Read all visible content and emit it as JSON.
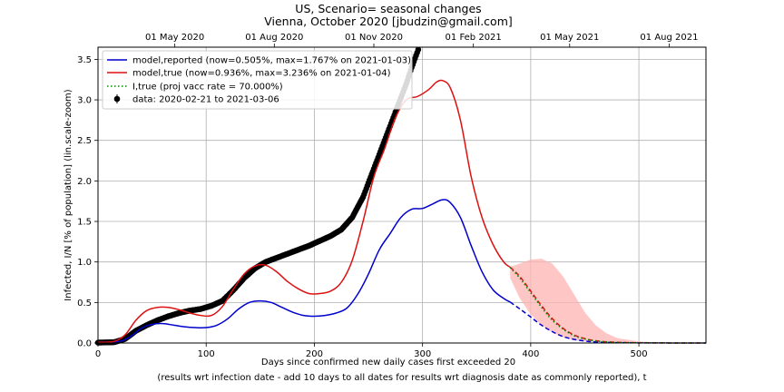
{
  "chart_data": {
    "type": "line",
    "title": [
      "US, Scenario= seasonal changes",
      "Vienna, October 2020 [jbudzin@gmail.com]"
    ],
    "xlabel": [
      "Days since confirmed new daily cases first exceeded 20",
      "(results wrt infection date - add 10 days to all dates for results wrt diagnosis date as commonly reported), t"
    ],
    "ylabel": "Infected, I/N [% of population] (lin.scale-zoom)",
    "xlim": [
      0,
      562
    ],
    "ylim": [
      0,
      3.65
    ],
    "x_ticks": [
      0,
      100,
      200,
      300,
      400,
      500
    ],
    "y_ticks": [
      0.0,
      0.5,
      1.0,
      1.5,
      2.0,
      2.5,
      3.0,
      3.5
    ],
    "top_axis_ticks": [
      {
        "t": 71,
        "label": "01 May 2020"
      },
      {
        "t": 163,
        "label": "01 Aug 2020"
      },
      {
        "t": 255,
        "label": "01 Nov 2020"
      },
      {
        "t": 347,
        "label": "01 Feb 2021"
      },
      {
        "t": 436,
        "label": "01 May 2021"
      },
      {
        "t": 528,
        "label": "01 Aug 2021"
      }
    ],
    "grid": true,
    "legend_position": "top-left",
    "series": [
      {
        "name": "model,reported (now=0.505%, max=1.767% on 2021-01-03)",
        "color": "#0000cc",
        "style": "solid",
        "points": [
          [
            0,
            0.01
          ],
          [
            20,
            0.02
          ],
          [
            30,
            0.08
          ],
          [
            40,
            0.18
          ],
          [
            50,
            0.23
          ],
          [
            60,
            0.24
          ],
          [
            70,
            0.22
          ],
          [
            80,
            0.2
          ],
          [
            90,
            0.19
          ],
          [
            100,
            0.19
          ],
          [
            110,
            0.22
          ],
          [
            120,
            0.3
          ],
          [
            130,
            0.42
          ],
          [
            140,
            0.5
          ],
          [
            150,
            0.52
          ],
          [
            160,
            0.5
          ],
          [
            170,
            0.44
          ],
          [
            180,
            0.38
          ],
          [
            190,
            0.34
          ],
          [
            200,
            0.33
          ],
          [
            210,
            0.34
          ],
          [
            220,
            0.37
          ],
          [
            230,
            0.43
          ],
          [
            240,
            0.6
          ],
          [
            250,
            0.85
          ],
          [
            260,
            1.15
          ],
          [
            270,
            1.35
          ],
          [
            280,
            1.55
          ],
          [
            290,
            1.65
          ],
          [
            300,
            1.66
          ],
          [
            310,
            1.72
          ],
          [
            318,
            1.767
          ],
          [
            325,
            1.74
          ],
          [
            335,
            1.55
          ],
          [
            345,
            1.2
          ],
          [
            355,
            0.88
          ],
          [
            365,
            0.66
          ],
          [
            375,
            0.55
          ],
          [
            381,
            0.505
          ]
        ]
      },
      {
        "name": "model,reported projection",
        "color": "#0000cc",
        "style": "dashed",
        "points": [
          [
            381,
            0.505
          ],
          [
            390,
            0.42
          ],
          [
            400,
            0.32
          ],
          [
            410,
            0.22
          ],
          [
            420,
            0.14
          ],
          [
            430,
            0.08
          ],
          [
            440,
            0.045
          ],
          [
            450,
            0.025
          ],
          [
            460,
            0.012
          ],
          [
            480,
            0.004
          ],
          [
            520,
            0.001
          ],
          [
            562,
            0.0
          ]
        ]
      },
      {
        "name": "model,true (now=0.936%, max=3.236% on 2021-01-04)",
        "color": "#dd1111",
        "style": "solid",
        "points": [
          [
            0,
            0.01
          ],
          [
            15,
            0.02
          ],
          [
            25,
            0.1
          ],
          [
            35,
            0.28
          ],
          [
            45,
            0.4
          ],
          [
            55,
            0.44
          ],
          [
            65,
            0.44
          ],
          [
            75,
            0.41
          ],
          [
            85,
            0.37
          ],
          [
            95,
            0.34
          ],
          [
            105,
            0.34
          ],
          [
            115,
            0.45
          ],
          [
            125,
            0.66
          ],
          [
            135,
            0.85
          ],
          [
            145,
            0.95
          ],
          [
            155,
            0.96
          ],
          [
            165,
            0.88
          ],
          [
            175,
            0.76
          ],
          [
            185,
            0.67
          ],
          [
            195,
            0.61
          ],
          [
            205,
            0.61
          ],
          [
            215,
            0.64
          ],
          [
            225,
            0.75
          ],
          [
            235,
            1.02
          ],
          [
            245,
            1.5
          ],
          [
            255,
            2.05
          ],
          [
            265,
            2.4
          ],
          [
            275,
            2.78
          ],
          [
            285,
            3.0
          ],
          [
            295,
            3.04
          ],
          [
            305,
            3.12
          ],
          [
            313,
            3.22
          ],
          [
            319,
            3.236
          ],
          [
            326,
            3.14
          ],
          [
            335,
            2.75
          ],
          [
            345,
            2.05
          ],
          [
            355,
            1.55
          ],
          [
            365,
            1.22
          ],
          [
            375,
            1.0
          ],
          [
            381,
            0.936
          ]
        ]
      },
      {
        "name": "model,true projection",
        "color": "#dd1111",
        "style": "dashed",
        "points": [
          [
            381,
            0.936
          ],
          [
            390,
            0.82
          ],
          [
            400,
            0.64
          ],
          [
            410,
            0.46
          ],
          [
            420,
            0.3
          ],
          [
            430,
            0.18
          ],
          [
            440,
            0.1
          ],
          [
            450,
            0.055
          ],
          [
            460,
            0.028
          ],
          [
            480,
            0.008
          ],
          [
            520,
            0.001
          ],
          [
            562,
            0.0
          ]
        ]
      },
      {
        "name": "I,true (proj vacc rate = 70.000%)",
        "color": "#008800",
        "style": "dotted",
        "points": [
          [
            381,
            0.93
          ],
          [
            390,
            0.8
          ],
          [
            400,
            0.62
          ],
          [
            410,
            0.44
          ],
          [
            420,
            0.28
          ],
          [
            430,
            0.17
          ],
          [
            440,
            0.09
          ],
          [
            450,
            0.05
          ],
          [
            460,
            0.025
          ],
          [
            480,
            0.007
          ],
          [
            520,
            0.001
          ],
          [
            562,
            0.0
          ]
        ]
      }
    ],
    "uncertainty_band": {
      "color": "#ffb3b3",
      "upper": [
        [
          381,
          0.94
        ],
        [
          390,
          0.98
        ],
        [
          400,
          1.03
        ],
        [
          410,
          1.04
        ],
        [
          420,
          0.98
        ],
        [
          430,
          0.82
        ],
        [
          440,
          0.6
        ],
        [
          450,
          0.38
        ],
        [
          460,
          0.22
        ],
        [
          470,
          0.12
        ],
        [
          480,
          0.06
        ],
        [
          500,
          0.02
        ],
        [
          520,
          0.005
        ],
        [
          562,
          0.0
        ]
      ],
      "lower": [
        [
          562,
          0.0
        ],
        [
          520,
          0.0
        ],
        [
          480,
          0.003
        ],
        [
          460,
          0.01
        ],
        [
          450,
          0.018
        ],
        [
          440,
          0.035
        ],
        [
          430,
          0.07
        ],
        [
          420,
          0.13
        ],
        [
          410,
          0.22
        ],
        [
          400,
          0.35
        ],
        [
          390,
          0.55
        ],
        [
          381,
          0.8
        ]
      ]
    },
    "data_series": {
      "name": "data: 2020-02-21 to 2021-03-06",
      "color": "#000000",
      "anchors": [
        [
          0,
          0.005
        ],
        [
          15,
          0.01
        ],
        [
          25,
          0.05
        ],
        [
          35,
          0.15
        ],
        [
          45,
          0.22
        ],
        [
          55,
          0.28
        ],
        [
          65,
          0.33
        ],
        [
          75,
          0.37
        ],
        [
          85,
          0.4
        ],
        [
          95,
          0.42
        ],
        [
          105,
          0.46
        ],
        [
          115,
          0.52
        ],
        [
          125,
          0.65
        ],
        [
          135,
          0.8
        ],
        [
          145,
          0.92
        ],
        [
          155,
          1.0
        ],
        [
          165,
          1.05
        ],
        [
          175,
          1.1
        ],
        [
          185,
          1.15
        ],
        [
          195,
          1.2
        ],
        [
          205,
          1.26
        ],
        [
          215,
          1.32
        ],
        [
          225,
          1.4
        ],
        [
          235,
          1.55
        ],
        [
          245,
          1.8
        ],
        [
          255,
          2.15
        ],
        [
          265,
          2.5
        ],
        [
          275,
          2.85
        ],
        [
          285,
          3.2
        ],
        [
          290,
          3.4
        ],
        [
          296,
          3.62
        ]
      ]
    }
  }
}
